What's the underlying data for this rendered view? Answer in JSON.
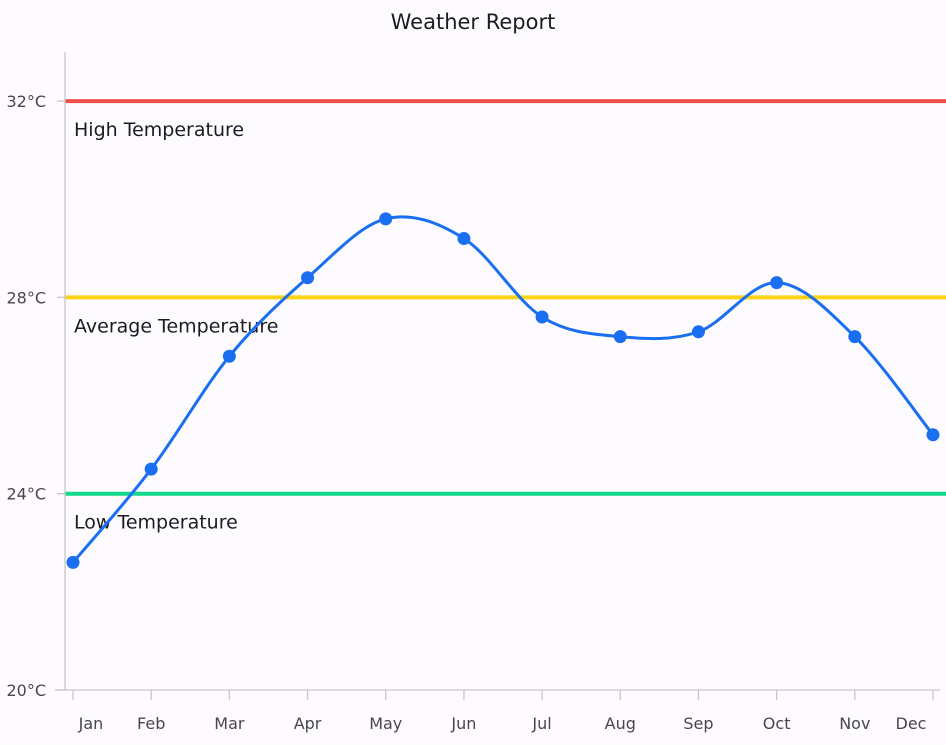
{
  "chart_data": {
    "type": "line",
    "title": "Weather Report",
    "xlabel": "",
    "ylabel": "",
    "categories": [
      "Jan",
      "Feb",
      "Mar",
      "Apr",
      "May",
      "Jun",
      "Jul",
      "Aug",
      "Sep",
      "Oct",
      "Nov",
      "Dec"
    ],
    "series": [
      {
        "values": [
          22.6,
          24.5,
          26.8,
          28.4,
          29.6,
          29.2,
          27.6,
          27.2,
          27.3,
          28.3,
          27.2,
          25.2
        ],
        "color": "#1a6ff0",
        "smooth": true,
        "markers": true
      }
    ],
    "ylim": [
      20,
      33
    ],
    "yticks": [
      20,
      24,
      28,
      32
    ],
    "ytick_suffix": "°C",
    "reference_lines": [
      {
        "label": "High Temperature",
        "value": 32,
        "color": "#f0504a"
      },
      {
        "label": "Average Temperature",
        "value": 28,
        "color": "#fad312"
      },
      {
        "label": "Low Temperature",
        "value": 24,
        "color": "#10d88c"
      }
    ],
    "grid": false,
    "legend": "none"
  }
}
